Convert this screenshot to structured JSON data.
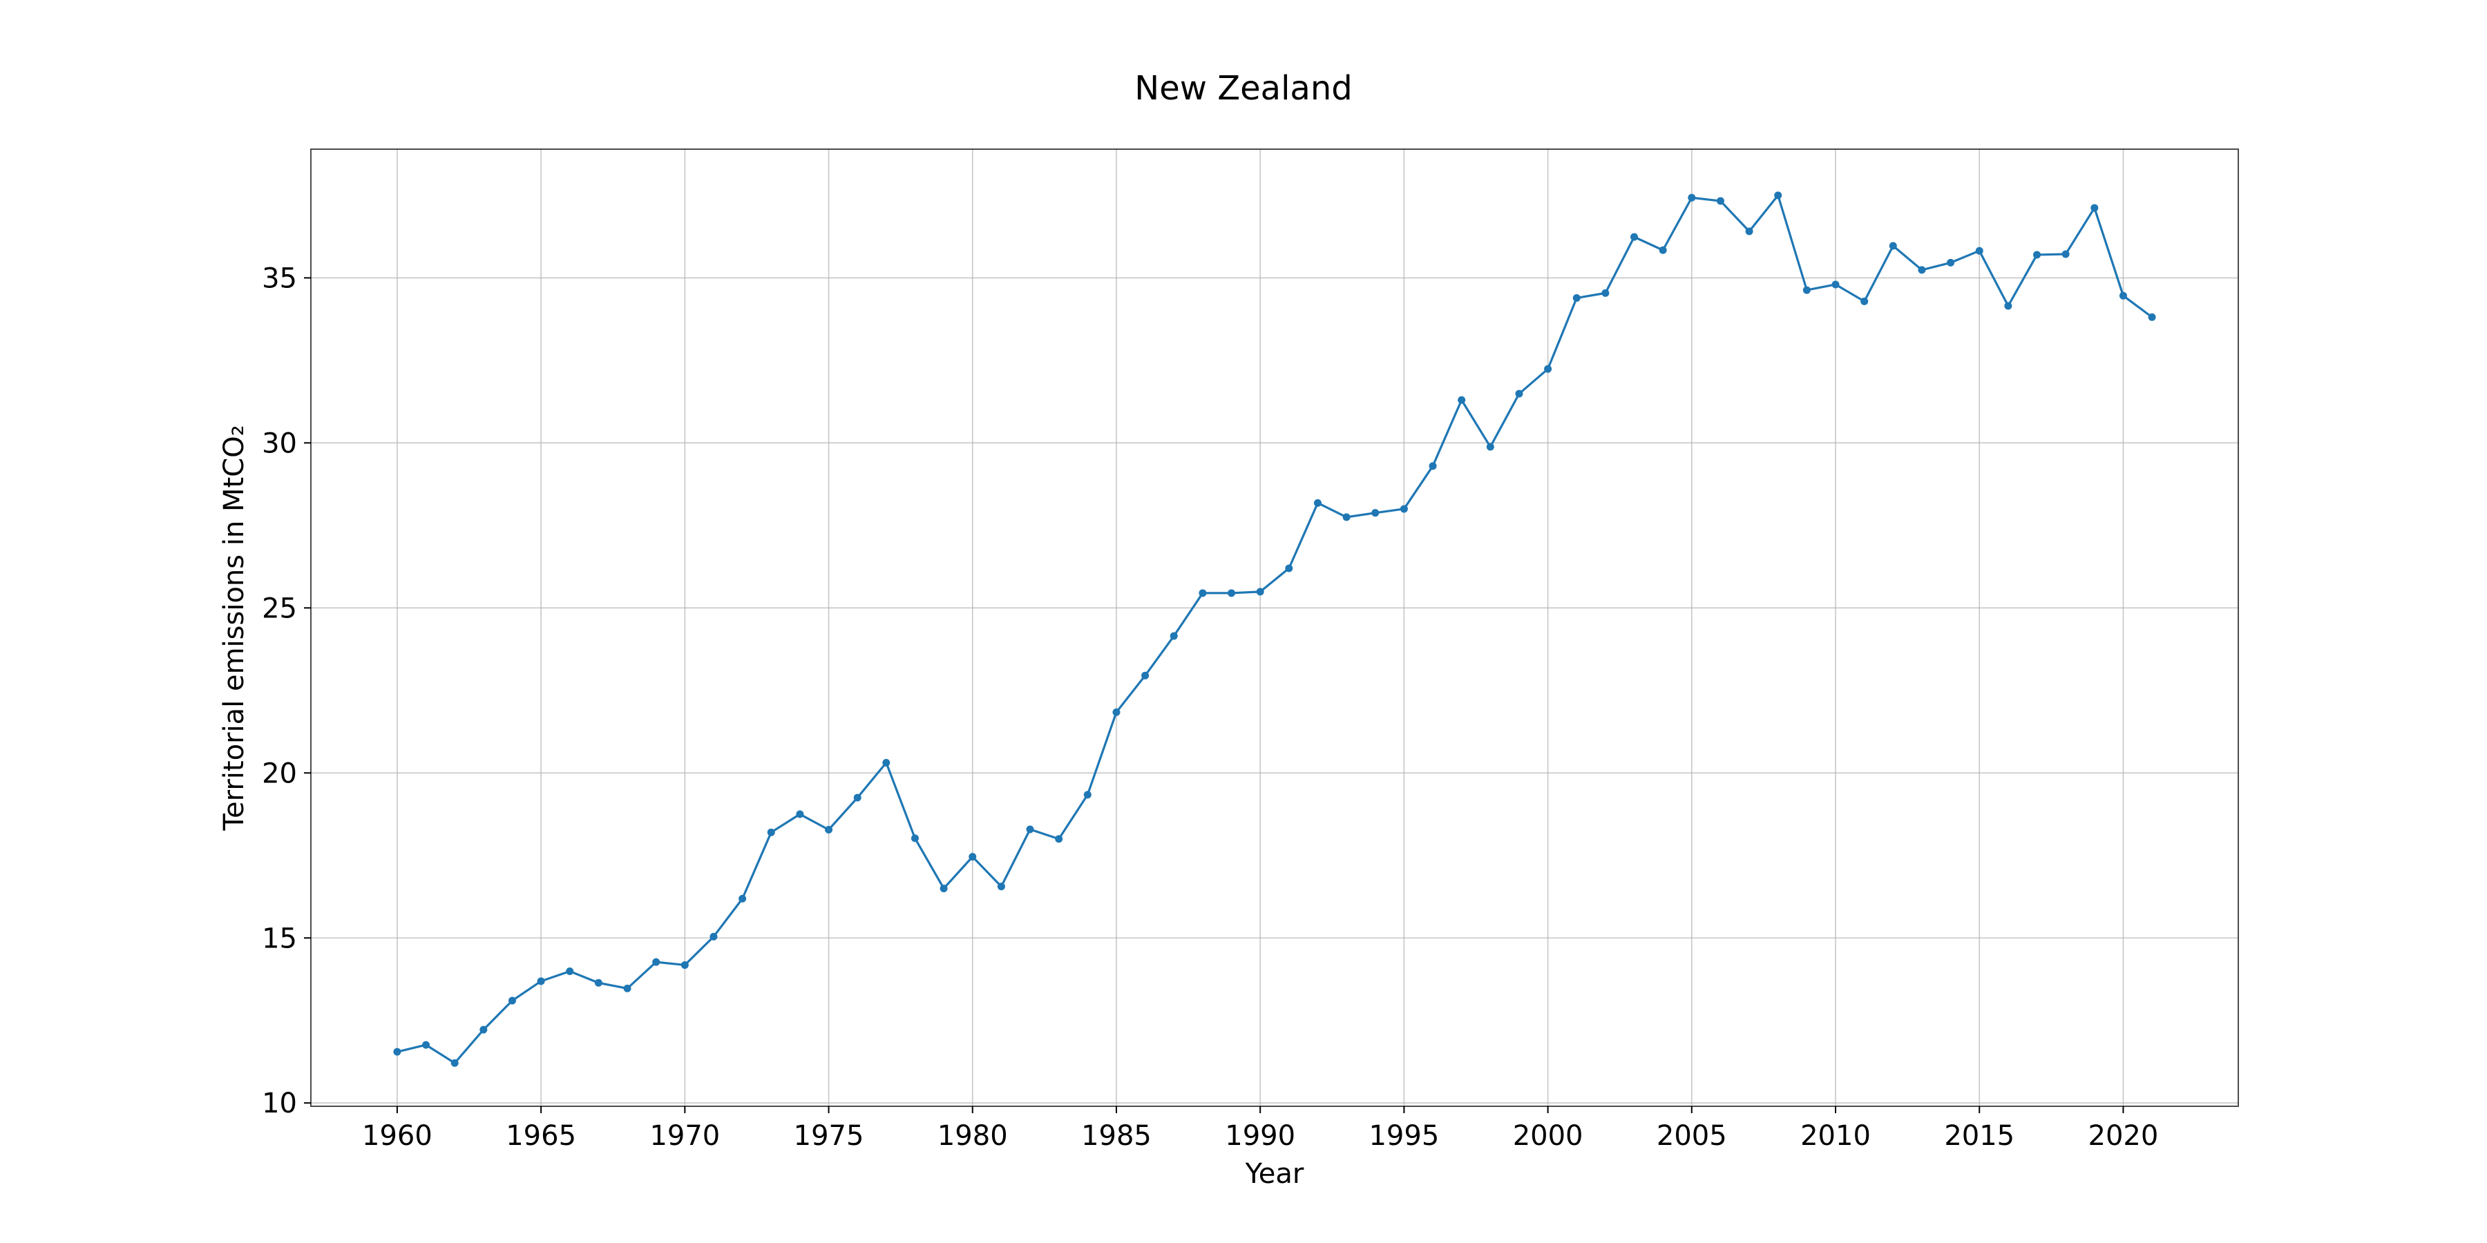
{
  "chart_data": {
    "type": "line",
    "title": "New Zealand",
    "xlabel": "Year",
    "ylabel": "Territorial emissions in MtCO₂",
    "xlim": [
      1957,
      2024
    ],
    "ylim": [
      9.9,
      38.9
    ],
    "xticks": [
      1960,
      1965,
      1970,
      1975,
      1980,
      1985,
      1990,
      1995,
      2000,
      2005,
      2010,
      2015,
      2020
    ],
    "yticks": [
      10,
      15,
      20,
      25,
      30,
      35
    ],
    "grid": true,
    "line_color": "#1f77b4",
    "marker": "circle",
    "series": [
      {
        "x": [
          1960,
          1961,
          1962,
          1963,
          1964,
          1965,
          1966,
          1967,
          1968,
          1969,
          1970,
          1971,
          1972,
          1973,
          1974,
          1975,
          1976,
          1977,
          1978,
          1979,
          1980,
          1981,
          1982,
          1983,
          1984,
          1985,
          1986,
          1987,
          1988,
          1989,
          1990,
          1991,
          1992,
          1993,
          1994,
          1995,
          1996,
          1997,
          1998,
          1999,
          2000,
          2001,
          2002,
          2003,
          2004,
          2005,
          2006,
          2007,
          2008,
          2009,
          2010,
          2011,
          2012,
          2013,
          2014,
          2015,
          2016,
          2017,
          2018,
          2019,
          2020,
          2021
        ],
        "values": [
          11.55,
          11.76,
          11.21,
          12.22,
          13.1,
          13.69,
          13.99,
          13.64,
          13.47,
          14.27,
          14.18,
          15.04,
          16.19,
          18.2,
          18.75,
          18.28,
          19.25,
          20.31,
          18.02,
          16.5,
          17.46,
          16.56,
          18.29,
          18.0,
          19.34,
          21.84,
          22.95,
          24.15,
          25.45,
          25.45,
          25.49,
          26.2,
          28.18,
          27.75,
          27.88,
          28.0,
          29.3,
          31.3,
          29.88,
          31.49,
          32.24,
          34.39,
          34.54,
          36.24,
          35.84,
          37.43,
          37.33,
          36.41,
          37.5,
          34.63,
          34.8,
          34.29,
          35.97,
          35.24,
          35.46,
          35.82,
          34.15,
          35.7,
          35.72,
          37.12,
          34.46,
          33.81
        ]
      }
    ]
  }
}
